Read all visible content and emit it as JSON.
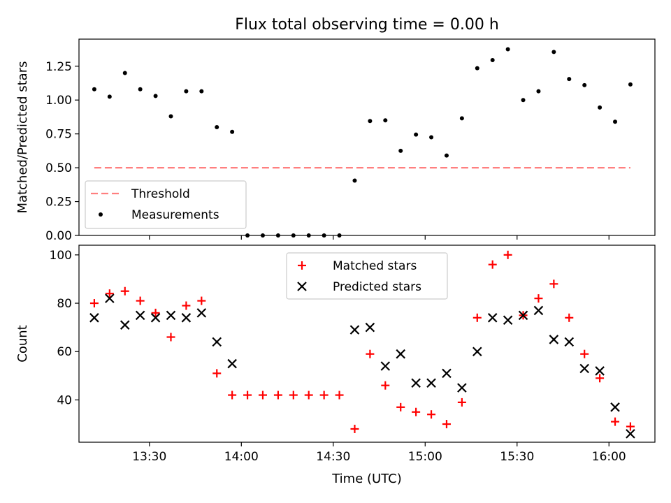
{
  "figure": {
    "title": "Flux total observing time = 0.00 h",
    "xlabel": "Time (UTC)",
    "x_ticks": [
      "13:30",
      "14:00",
      "14:30",
      "15:00",
      "15:30",
      "16:00"
    ]
  },
  "chart_data": [
    {
      "type": "scatter",
      "panel": "top",
      "title": "Flux total observing time = 0.00 h",
      "xlabel": "",
      "ylabel": "Matched/Predicted stars",
      "xlim": [
        "13:07",
        "16:15"
      ],
      "ylim": [
        0,
        1.45
      ],
      "y_ticks": [
        "0.00",
        "0.25",
        "0.50",
        "0.75",
        "1.00",
        "1.25"
      ],
      "y_tick_values": [
        0,
        0.25,
        0.5,
        0.75,
        1.0,
        1.25
      ],
      "legend": {
        "position": "lower-left",
        "entries": [
          "Threshold",
          "Measurements"
        ]
      },
      "threshold": {
        "name": "Threshold",
        "value": 0.5,
        "x_range": [
          "13:12",
          "16:07"
        ],
        "color": "#ff7f7f",
        "style": "dashed"
      },
      "series": [
        {
          "name": "Measurements",
          "marker": "dot",
          "color": "#000000",
          "x": [
            "13:12",
            "13:17",
            "13:22",
            "13:27",
            "13:32",
            "13:37",
            "13:42",
            "13:47",
            "13:52",
            "13:57",
            "14:02",
            "14:07",
            "14:12",
            "14:17",
            "14:22",
            "14:27",
            "14:32",
            "14:37",
            "14:42",
            "14:47",
            "14:52",
            "14:57",
            "15:02",
            "15:07",
            "15:12",
            "15:17",
            "15:22",
            "15:27",
            "15:32",
            "15:37",
            "15:42",
            "15:47",
            "15:52",
            "15:57",
            "16:02",
            "16:07"
          ],
          "values": [
            1.08,
            1.025,
            1.2,
            1.08,
            1.03,
            0.88,
            1.065,
            1.065,
            0.8,
            0.765,
            0.0,
            0.0,
            0.0,
            0.0,
            0.0,
            0.0,
            0.0,
            0.405,
            0.845,
            0.85,
            0.625,
            0.745,
            0.725,
            0.59,
            0.865,
            1.235,
            1.295,
            1.375,
            1.0,
            1.065,
            1.355,
            1.155,
            1.11,
            0.945,
            0.84,
            1.115
          ]
        }
      ]
    },
    {
      "type": "scatter",
      "panel": "bottom",
      "xlabel": "Time (UTC)",
      "ylabel": "Count",
      "xlim": [
        "13:07",
        "16:15"
      ],
      "ylim": [
        22.5,
        104
      ],
      "y_ticks": [
        "40",
        "60",
        "80",
        "100"
      ],
      "y_tick_values": [
        40,
        60,
        80,
        100
      ],
      "legend": {
        "position": "top-center",
        "entries": [
          "Matched stars",
          "Predicted stars"
        ]
      },
      "x": [
        "13:12",
        "13:17",
        "13:22",
        "13:27",
        "13:32",
        "13:37",
        "13:42",
        "13:47",
        "13:52",
        "13:57",
        "14:02",
        "14:07",
        "14:12",
        "14:17",
        "14:22",
        "14:27",
        "14:32",
        "14:37",
        "14:42",
        "14:47",
        "14:52",
        "14:57",
        "15:02",
        "15:07",
        "15:12",
        "15:17",
        "15:22",
        "15:27",
        "15:32",
        "15:37",
        "15:42",
        "15:47",
        "15:52",
        "15:57",
        "16:02",
        "16:07"
      ],
      "series": [
        {
          "name": "Matched stars",
          "marker": "plus",
          "color": "#ff0000",
          "values": [
            80,
            84,
            85,
            81,
            76,
            66,
            79,
            81,
            51,
            42,
            42,
            42,
            42,
            42,
            42,
            42,
            42,
            28,
            59,
            46,
            37,
            35,
            34,
            30,
            39,
            74,
            96,
            100,
            75,
            82,
            88,
            74,
            59,
            49,
            31,
            29
          ]
        },
        {
          "name": "Predicted stars",
          "marker": "x",
          "color": "#000000",
          "values": [
            74,
            82,
            71,
            75,
            74,
            75,
            74,
            76,
            64,
            55,
            null,
            null,
            null,
            null,
            null,
            null,
            null,
            69,
            70,
            54,
            59,
            47,
            47,
            51,
            45,
            60,
            74,
            73,
            75,
            77,
            65,
            64,
            53,
            52,
            37,
            26
          ]
        }
      ]
    }
  ]
}
